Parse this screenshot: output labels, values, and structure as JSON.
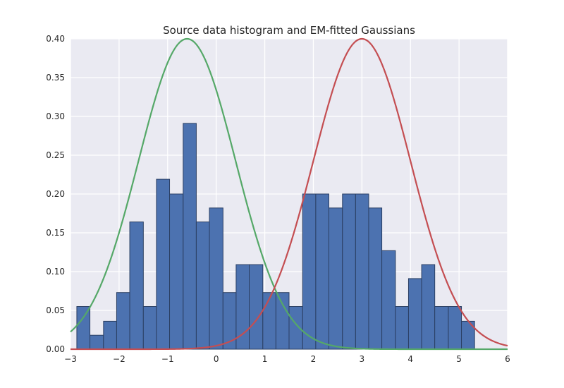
{
  "chart_data": {
    "type": "histogram",
    "title": "Source data histogram and EM-fitted Gaussians",
    "xlabel": "",
    "ylabel": "",
    "xlim": [
      -3,
      6
    ],
    "ylim": [
      0,
      0.4
    ],
    "x_ticks": [
      -3,
      -2,
      -1,
      0,
      1,
      2,
      3,
      4,
      5,
      6
    ],
    "y_ticks": [
      0.0,
      0.05,
      0.1,
      0.15,
      0.2,
      0.25,
      0.3,
      0.35,
      0.4
    ],
    "x_tick_labels": [
      "−3",
      "−2",
      "−1",
      "0",
      "1",
      "2",
      "3",
      "4",
      "5",
      "6"
    ],
    "y_tick_labels": [
      "0.00",
      "0.05",
      "0.10",
      "0.15",
      "0.20",
      "0.25",
      "0.30",
      "0.35",
      "0.40"
    ],
    "grid": true,
    "background_color": "#eaeaf2",
    "bar_color": "#4c72b0",
    "bar_edge_color": "#2b3f63",
    "bins": {
      "edges": [
        -2.87,
        -2.6,
        -2.32,
        -2.05,
        -1.78,
        -1.5,
        -1.23,
        -0.96,
        -0.68,
        -0.41,
        -0.14,
        0.14,
        0.41,
        0.68,
        0.96,
        1.23,
        1.5,
        1.78,
        2.05,
        2.32,
        2.6,
        2.87,
        3.14,
        3.41,
        3.69,
        3.96,
        4.23,
        4.5,
        4.78,
        5.05,
        5.32
      ],
      "values": [
        0.055,
        0.018,
        0.036,
        0.073,
        0.164,
        0.055,
        0.219,
        0.2,
        0.291,
        0.164,
        0.182,
        0.073,
        0.109,
        0.109,
        0.073,
        0.073,
        0.055,
        0.2,
        0.2,
        0.182,
        0.2,
        0.2,
        0.182,
        0.127,
        0.055,
        0.091,
        0.109,
        0.055,
        0.055,
        0.036
      ]
    },
    "curves": [
      {
        "mean": -0.6,
        "std": 1.0,
        "peak": 0.4,
        "color": "#55a868"
      },
      {
        "mean": 3.0,
        "std": 1.0,
        "peak": 0.4,
        "color": "#c44e52"
      }
    ]
  }
}
